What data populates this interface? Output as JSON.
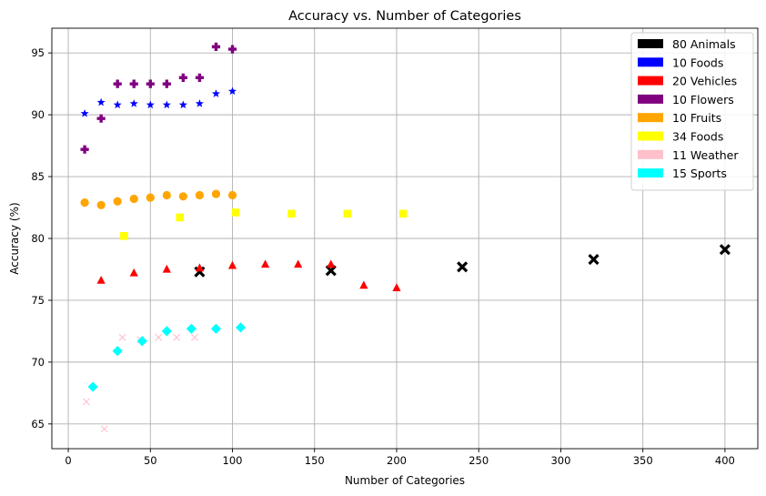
{
  "chart_data": {
    "type": "scatter",
    "title": "Accuracy vs. Number of Categories",
    "xlabel": "Number of Categories",
    "ylabel": "Accuracy (%)",
    "xlim": [
      -10,
      420
    ],
    "ylim": [
      63,
      97
    ],
    "xticks": [
      0,
      50,
      100,
      150,
      200,
      250,
      300,
      350,
      400
    ],
    "yticks": [
      65,
      70,
      75,
      80,
      85,
      90,
      95
    ],
    "grid": true,
    "legend_position": "top-right",
    "series": [
      {
        "name": "80 Animals",
        "color": "#000000",
        "marker": "x-filled",
        "x": [
          80,
          160,
          240,
          320,
          400
        ],
        "y": [
          77.3,
          77.4,
          77.7,
          78.3,
          79.1
        ]
      },
      {
        "name": "10 Foods",
        "color": "#0000ff",
        "marker": "star",
        "x": [
          10,
          20,
          30,
          40,
          50,
          60,
          70,
          80,
          90,
          100
        ],
        "y": [
          90.1,
          91.0,
          90.8,
          90.9,
          90.8,
          90.8,
          90.8,
          90.9,
          91.7,
          91.9
        ]
      },
      {
        "name": "20 Vehicles",
        "color": "#ff0000",
        "marker": "triangle",
        "x": [
          20,
          40,
          60,
          80,
          100,
          120,
          140,
          160,
          180,
          200
        ],
        "y": [
          76.6,
          77.2,
          77.5,
          77.6,
          77.8,
          77.9,
          77.9,
          77.9,
          76.2,
          76.0
        ]
      },
      {
        "name": "10 Flowers",
        "color": "#800080",
        "marker": "plus-filled",
        "x": [
          10,
          20,
          30,
          40,
          50,
          60,
          70,
          80,
          90,
          100
        ],
        "y": [
          87.2,
          89.7,
          92.5,
          92.5,
          92.5,
          92.5,
          93.0,
          93.0,
          95.5,
          95.3
        ]
      },
      {
        "name": "10 Fruits",
        "color": "#ffa500",
        "marker": "circle",
        "x": [
          10,
          20,
          30,
          40,
          50,
          60,
          70,
          80,
          90,
          100
        ],
        "y": [
          82.9,
          82.7,
          83.0,
          83.2,
          83.3,
          83.5,
          83.4,
          83.5,
          83.6,
          83.5
        ]
      },
      {
        "name": "34 Foods",
        "color": "#ffff00",
        "marker": "square",
        "x": [
          34,
          68,
          102,
          136,
          170,
          204
        ],
        "y": [
          80.2,
          81.7,
          82.1,
          82.0,
          82.0,
          82.0
        ]
      },
      {
        "name": "11 Weather",
        "color": "#ffc0cb",
        "marker": "x",
        "x": [
          11,
          22,
          33,
          44,
          55,
          66,
          77
        ],
        "y": [
          66.8,
          64.6,
          72.0,
          71.8,
          72.0,
          72.0,
          72.0
        ]
      },
      {
        "name": "15 Sports",
        "color": "#00ffff",
        "marker": "diamond",
        "x": [
          15,
          30,
          45,
          60,
          75,
          90,
          105
        ],
        "y": [
          68.0,
          70.9,
          71.7,
          72.5,
          72.7,
          72.7,
          72.8
        ]
      }
    ]
  }
}
